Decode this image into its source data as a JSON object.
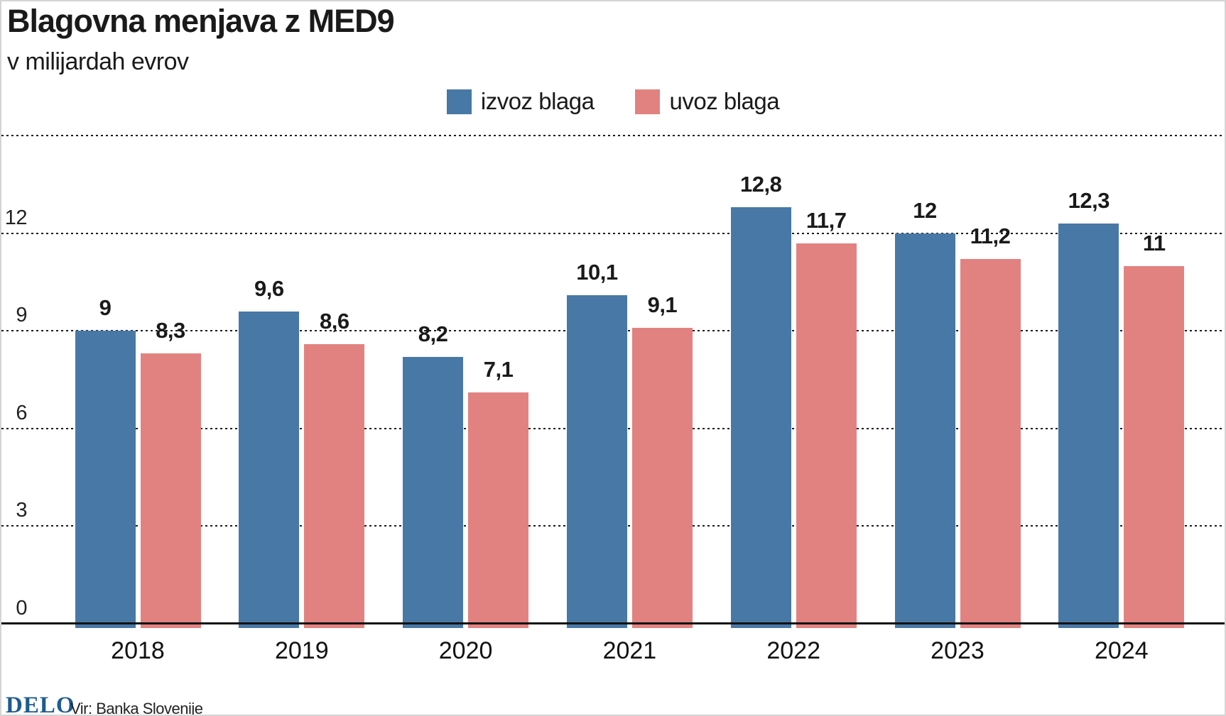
{
  "header": {
    "title": "Blagovna menjava z MED9",
    "subtitle": "v milijardah evrov"
  },
  "legend": [
    {
      "label": "izvoz blaga",
      "color": "#4878a6"
    },
    {
      "label": "uvoz blaga",
      "color": "#e28280"
    }
  ],
  "chart_data": {
    "type": "bar",
    "title": "Blagovna menjava z MED9",
    "subtitle": "v milijardah evrov",
    "categories": [
      "2018",
      "2019",
      "2020",
      "2021",
      "2022",
      "2023",
      "2024"
    ],
    "series": [
      {
        "name": "izvoz blaga",
        "color": "#4878a6",
        "values": [
          9,
          9.6,
          8.2,
          10.1,
          12.8,
          12,
          12.3
        ],
        "labels": [
          "9",
          "9,6",
          "8,2",
          "10,1",
          "12,8",
          "12",
          "12,3"
        ]
      },
      {
        "name": "uvoz blaga",
        "color": "#e28280",
        "values": [
          8.3,
          8.6,
          7.1,
          9.1,
          11.7,
          11.2,
          11
        ],
        "labels": [
          "8,3",
          "8,6",
          "7,1",
          "9,1",
          "11,7",
          "11,2",
          "11"
        ]
      }
    ],
    "xlabel": "",
    "ylabel": "v milijardah evrov",
    "yticks": [
      0,
      3,
      6,
      9,
      12
    ],
    "gridlines": [
      3,
      6,
      9,
      12,
      15
    ],
    "ylim": [
      0,
      15.5
    ],
    "grid": "dotted-horizontal",
    "legend_position": "top-center"
  },
  "footer": {
    "logo": "DELO",
    "source": "Vir: Banka Slovenije"
  }
}
